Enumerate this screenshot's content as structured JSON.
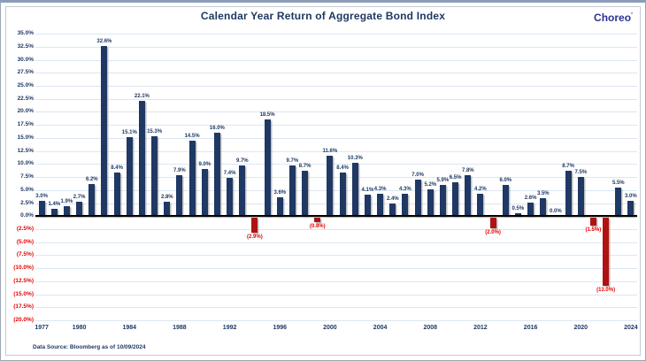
{
  "page": {
    "logo": "Choreo",
    "logo_mark": "’",
    "data_source": "Data Source: Bloomberg as of 10/09/2024"
  },
  "chart_data": {
    "type": "bar",
    "title": "Calendar Year Return of Aggregate Bond Index",
    "x": [
      1977,
      1978,
      1979,
      1980,
      1981,
      1982,
      1983,
      1984,
      1985,
      1986,
      1987,
      1988,
      1989,
      1990,
      1991,
      1992,
      1993,
      1994,
      1995,
      1996,
      1997,
      1998,
      1999,
      2000,
      2001,
      2002,
      2003,
      2004,
      2005,
      2006,
      2007,
      2008,
      2009,
      2010,
      2011,
      2012,
      2013,
      2014,
      2015,
      2016,
      2017,
      2018,
      2019,
      2020,
      2021,
      2022,
      2023,
      2024
    ],
    "values": [
      3.0,
      1.4,
      1.9,
      2.7,
      6.2,
      32.6,
      8.4,
      15.1,
      22.1,
      15.3,
      2.8,
      7.9,
      14.5,
      9.0,
      16.0,
      7.4,
      9.7,
      -2.9,
      18.5,
      3.6,
      9.7,
      8.7,
      -0.8,
      11.6,
      8.4,
      10.3,
      4.1,
      4.3,
      2.4,
      4.3,
      7.0,
      5.2,
      5.9,
      6.5,
      7.8,
      4.2,
      -2.0,
      6.0,
      0.5,
      2.6,
      3.5,
      0.0,
      8.7,
      7.5,
      -1.5,
      -13.0,
      5.5,
      3.0
    ],
    "ylim": [
      -20,
      35
    ],
    "ytick_step": 2.5,
    "x_axis_ticks": [
      1977,
      1980,
      1984,
      1988,
      1992,
      1996,
      2000,
      2004,
      2008,
      2012,
      2016,
      2020,
      2024
    ],
    "grid": true,
    "legend": "none",
    "value_label_format": "positive as 0.0%, negative as (0.0%)",
    "xlabel": "",
    "ylabel": "",
    "colors": {
      "bar_positive": "#1f3864",
      "bar_negative": "#b01212",
      "label_positive": "#1f3864",
      "label_negative": "#e60000",
      "gridline": "#dce6f2",
      "axis_line": "#000000",
      "title": "#1f3864",
      "logo": "#2e3191"
    },
    "source_note": "Data Source: Bloomberg as of 10/09/2024"
  }
}
